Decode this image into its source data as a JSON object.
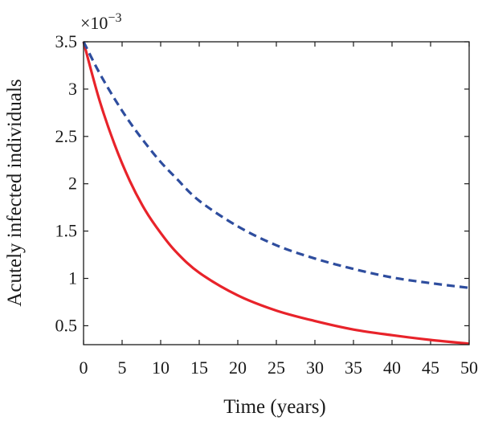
{
  "chart_data": {
    "type": "line",
    "xlabel": "Time (years)",
    "ylabel": "Acutely infected individuals",
    "y_multiplier": "×10",
    "y_multiplier_exp": "−3",
    "xlim": [
      0,
      50
    ],
    "ylim": [
      0.3,
      3.5
    ],
    "x_ticks": [
      0,
      5,
      10,
      15,
      20,
      25,
      30,
      35,
      40,
      45,
      50
    ],
    "y_ticks": [
      0.5,
      1,
      1.5,
      2,
      2.5,
      3,
      3.5
    ],
    "x_tick_labels": [
      "0",
      "5",
      "10",
      "15",
      "20",
      "25",
      "30",
      "35",
      "40",
      "45",
      "50"
    ],
    "y_tick_labels": [
      "0.5",
      "1",
      "1.5",
      "2",
      "2.5",
      "3",
      "3.5"
    ],
    "grid": false,
    "series": [
      {
        "color": "#e8232a",
        "style": "solid",
        "x": [
          0,
          2,
          4,
          6,
          8,
          10,
          12,
          15,
          20,
          25,
          30,
          35,
          40,
          45,
          50
        ],
        "y": [
          3.5,
          2.9,
          2.42,
          2.03,
          1.72,
          1.48,
          1.28,
          1.06,
          0.82,
          0.66,
          0.55,
          0.46,
          0.4,
          0.35,
          0.31
        ]
      },
      {
        "color": "#2e4d9e",
        "style": "dashed",
        "x": [
          0,
          2,
          4,
          6,
          8,
          10,
          12,
          15,
          20,
          25,
          30,
          35,
          40,
          45,
          50
        ],
        "y": [
          3.5,
          3.18,
          2.9,
          2.65,
          2.43,
          2.23,
          2.06,
          1.82,
          1.55,
          1.35,
          1.21,
          1.1,
          1.01,
          0.95,
          0.9
        ]
      }
    ]
  }
}
